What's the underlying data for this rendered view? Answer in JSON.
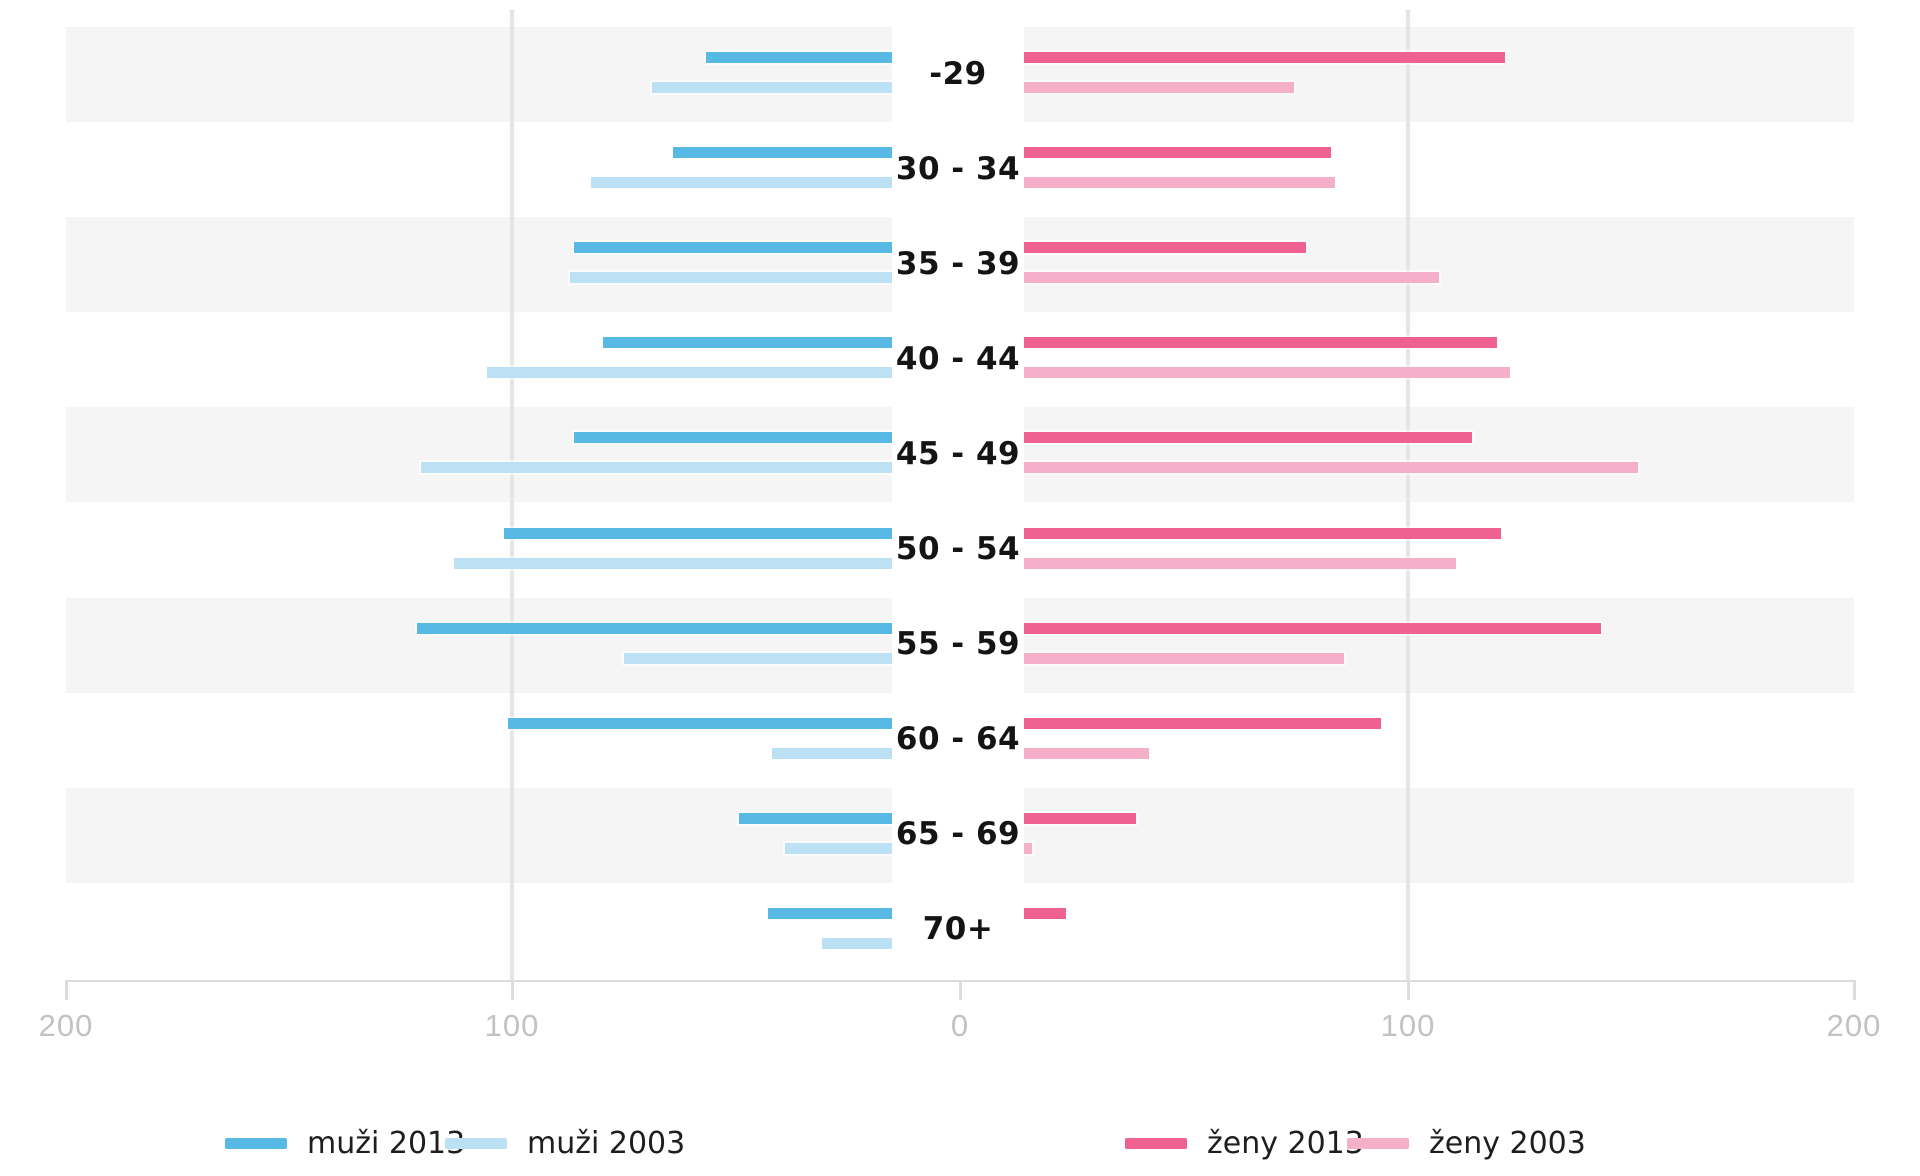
{
  "chart_data": {
    "type": "bar",
    "subtype": "population-pyramid",
    "title": "",
    "categories": [
      "-29",
      "30 - 34",
      "35 - 39",
      "40 - 44",
      "45 - 49",
      "50 - 54",
      "55 - 59",
      "60 - 64",
      "65 - 69",
      "70+"
    ],
    "series": [
      {
        "name": "muži 2013",
        "side": "left",
        "color": "#58B9E5",
        "values": [
          45,
          53,
          77,
          70,
          77,
          94,
          115,
          93,
          37,
          30
        ]
      },
      {
        "name": "muži 2003",
        "side": "left",
        "color": "#BCE0F4",
        "values": [
          58,
          73,
          78,
          98,
          114,
          106,
          65,
          29,
          26,
          17
        ]
      },
      {
        "name": "ženy 2013",
        "side": "right",
        "color": "#EF6190",
        "values": [
          116,
          74,
          68,
          114,
          108,
          115,
          139,
          86,
          27,
          10
        ]
      },
      {
        "name": "ženy 2003",
        "side": "right",
        "color": "#F5AFC9",
        "values": [
          65,
          75,
          100,
          117,
          148,
          104,
          77,
          30,
          2,
          0
        ]
      }
    ],
    "axis": {
      "tick_labels": [
        "200",
        "100",
        "0",
        "100",
        "200"
      ],
      "max_per_side": 200,
      "grid": "vertical gridlines at ±100 only"
    },
    "legend": {
      "items": [
        "muži 2013",
        "muži 2003",
        "ženy 2013",
        "ženy 2003"
      ],
      "position": "bottom"
    },
    "row_striping": {
      "odd_rows_shaded": true,
      "band_color": "#F5F5F6"
    }
  },
  "colors": {
    "muzi_2013": "#58B9E5",
    "muzi_2003": "#BCE0F4",
    "zeny_2013": "#EF6190",
    "zeny_2003": "#F5AFC9",
    "band": "#F5F5F6",
    "gridline": "#E4E4E9",
    "axis": "#DCDCE0",
    "tick_text": "#C2C2C6",
    "label_text": "#141414"
  }
}
